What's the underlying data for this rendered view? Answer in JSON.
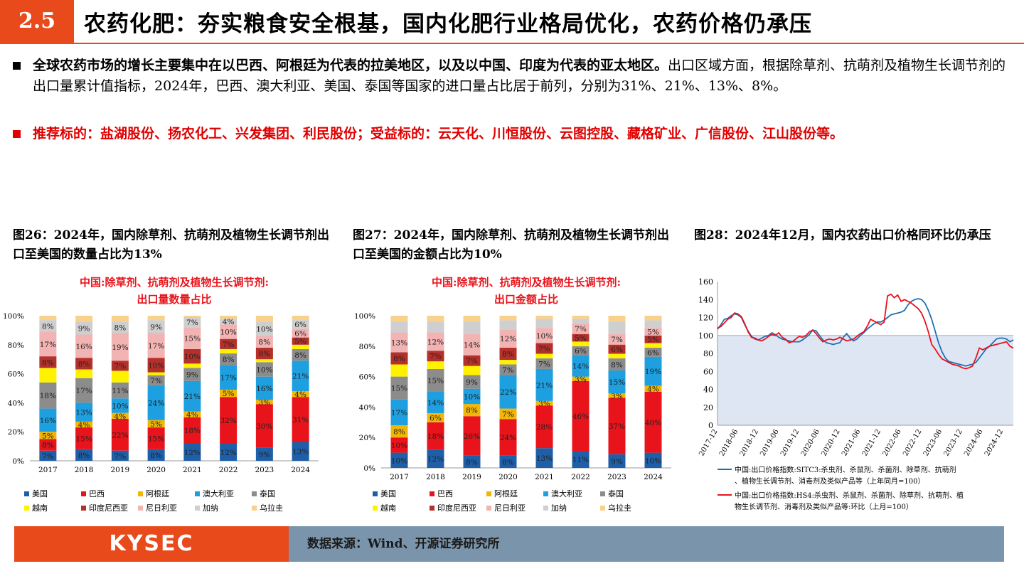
{
  "header": {
    "section_number": "2.5",
    "title": "农药化肥：夯实粮食安全根基，国内化肥行业格局优化，农药价格仍承压"
  },
  "bullets": [
    {
      "bold": "全球农药市场的增长主要集中在以巴西、阿根廷为代表的拉美地区，以及以中国、印度为代表的亚太地区。",
      "rest": "出口区域方面，根据除草剂、抗萌剂及植物生长调节剂的出口量累计值指标，2024年，巴西、澳大利亚、美国、泰国等国家的进口量占比居于前列，分别为31%、21%、13%、8%。"
    },
    {
      "text": "推荐标的：盐湖股份、扬农化工、兴发集团、利民股份；受益标的：云天化、川恒股份、云图控股、藏格矿业、广信股份、江山股份等。"
    }
  ],
  "figures": {
    "fig26_title": "图26：2024年，国内除草剂、抗萌剂及植物生长调节剂出口至美国的数量占比为13%",
    "fig27_title": "图27：2024年，国内除草剂、抗萌剂及植物生长调节剂出口至美国的金额占比为10%",
    "fig28_title": "图28：2024年12月，国内农药出口价格同环比仍承压"
  },
  "footer": {
    "logo": "KYSEC",
    "source": "数据来源：Wind、开源证券研究所"
  },
  "colors": {
    "accent": "#e84a1c",
    "footer_bar": "#7a95ab",
    "recommend_text": "#e00000"
  },
  "chart_data": [
    {
      "type": "bar",
      "stacked": true,
      "title": "中国:除草剂、抗萌剂及植物生长调节剂:出口量数量占比",
      "categories": [
        "2017",
        "2018",
        "2019",
        "2020",
        "2021",
        "2022",
        "2023",
        "2024"
      ],
      "y_ticks": [
        "0%",
        "20%",
        "40%",
        "60%",
        "80%",
        "100%"
      ],
      "ylim": [
        0,
        100
      ],
      "legend_position": "bottom",
      "series": [
        {
          "name": "美国",
          "color": "#1f5fa8",
          "values": [
            7,
            8,
            7,
            8,
            12,
            12,
            9,
            13
          ]
        },
        {
          "name": "巴西",
          "color": "#e8131b",
          "values": [
            8,
            15,
            22,
            15,
            18,
            32,
            30,
            31
          ]
        },
        {
          "name": "阿根廷",
          "color": "#f2b705",
          "values": [
            5,
            4,
            4,
            5,
            4,
            5,
            3,
            4
          ]
        },
        {
          "name": "澳大利亚",
          "color": "#1e9fe0",
          "values": [
            16,
            13,
            10,
            24,
            21,
            17,
            16,
            21
          ]
        },
        {
          "name": "泰国",
          "color": "#8c8c8c",
          "values": [
            18,
            17,
            11,
            7,
            9,
            8,
            10,
            8
          ]
        },
        {
          "name": "越南",
          "color": "#fff200",
          "values": [
            10,
            6,
            8,
            2,
            3,
            3,
            2,
            3
          ]
        },
        {
          "name": "印度尼西亚",
          "color": "#b5302a",
          "values": [
            8,
            8,
            7,
            10,
            10,
            7,
            8,
            5
          ]
        },
        {
          "name": "尼日利亚",
          "color": "#f2b3b3",
          "values": [
            17,
            16,
            19,
            17,
            15,
            10,
            8,
            6
          ]
        },
        {
          "name": "加纳",
          "color": "#cfcfcf",
          "values": [
            8,
            9,
            8,
            9,
            7,
            4,
            10,
            6
          ]
        },
        {
          "name": "乌拉圭",
          "color": "#f9d18b",
          "values": [
            3,
            4,
            4,
            3,
            1,
            2,
            4,
            3
          ]
        }
      ],
      "data_labels": [
        [
          "7%",
          "8%",
          "5%",
          "16%",
          "18%",
          "",
          "8%",
          "17%",
          "8%",
          ""
        ],
        [
          "8%",
          "15%",
          "4%",
          "13%",
          "17%",
          "",
          "8%",
          "16%",
          "9%",
          ""
        ],
        [
          "7%",
          "22%",
          "4%",
          "10%",
          "11%",
          "",
          "7%",
          "19%",
          "8%",
          ""
        ],
        [
          "8%",
          "15%",
          "5%",
          "24%",
          "7%",
          "",
          "10%",
          "17%",
          "9%",
          ""
        ],
        [
          "12%",
          "18%",
          "4%",
          "21%",
          "9%",
          "",
          "10%",
          "15%",
          "7%",
          ""
        ],
        [
          "12%",
          "32%",
          "5%",
          "17%",
          "8%",
          "",
          "7%",
          "10%",
          "4%",
          ""
        ],
        [
          "9%",
          "30%",
          "3%",
          "16%",
          "10%",
          "",
          "8%",
          "8%",
          "10%",
          ""
        ],
        [
          "13%",
          "31%",
          "4%",
          "21%",
          "8%",
          "",
          "5%",
          "6%",
          "6%",
          ""
        ]
      ]
    },
    {
      "type": "bar",
      "stacked": true,
      "title": "中国:除草剂、抗萌剂及植物生长调节剂:出口金额占比",
      "categories": [
        "2017",
        "2018",
        "2019",
        "2020",
        "2021",
        "2022",
        "2023",
        "2024"
      ],
      "y_ticks": [
        "0%",
        "20%",
        "40%",
        "60%",
        "80%",
        "100%"
      ],
      "ylim": [
        0,
        100
      ],
      "legend_position": "bottom",
      "series": [
        {
          "name": "美国",
          "color": "#1f5fa8",
          "values": [
            10,
            12,
            8,
            8,
            13,
            11,
            9,
            10
          ]
        },
        {
          "name": "巴西",
          "color": "#e8131b",
          "values": [
            10,
            18,
            26,
            24,
            28,
            46,
            37,
            40
          ]
        },
        {
          "name": "阿根廷",
          "color": "#f2b705",
          "values": [
            8,
            6,
            8,
            7,
            3,
            3,
            3,
            4
          ]
        },
        {
          "name": "澳大利亚",
          "color": "#1e9fe0",
          "values": [
            17,
            14,
            10,
            22,
            21,
            14,
            15,
            19
          ]
        },
        {
          "name": "泰国",
          "color": "#8c8c8c",
          "values": [
            15,
            15,
            9,
            7,
            7,
            6,
            8,
            6
          ]
        },
        {
          "name": "越南",
          "color": "#fff200",
          "values": [
            8,
            5,
            6,
            3,
            3,
            3,
            3,
            3
          ]
        },
        {
          "name": "印度尼西亚",
          "color": "#b5302a",
          "values": [
            8,
            7,
            7,
            8,
            7,
            5,
            6,
            5
          ]
        },
        {
          "name": "尼日利亚",
          "color": "#f2b3b3",
          "values": [
            13,
            12,
            14,
            12,
            10,
            7,
            7,
            5
          ]
        },
        {
          "name": "加纳",
          "color": "#cfcfcf",
          "values": [
            7,
            7,
            8,
            6,
            6,
            3,
            8,
            5
          ]
        },
        {
          "name": "乌拉圭",
          "color": "#f9d18b",
          "values": [
            4,
            4,
            4,
            3,
            2,
            2,
            4,
            3
          ]
        }
      ],
      "data_labels": [
        [
          "10%",
          "10%",
          "8%",
          "17%",
          "15%",
          "",
          "8%",
          "13%",
          "",
          ""
        ],
        [
          "12%",
          "18%",
          "6%",
          "14%",
          "15%",
          "",
          "7%",
          "12%",
          "",
          ""
        ],
        [
          "8%",
          "26%",
          "8%",
          "10%",
          "9%",
          "",
          "7%",
          "14%",
          "",
          ""
        ],
        [
          "8%",
          "24%",
          "7%",
          "22%",
          "7%",
          "",
          "8%",
          "12%",
          "",
          ""
        ],
        [
          "13%",
          "28%",
          "3%",
          "21%",
          "7%",
          "",
          "7%",
          "10%",
          "",
          ""
        ],
        [
          "11%",
          "46%",
          "3%",
          "14%",
          "6%",
          "",
          "5%",
          "7%",
          "",
          ""
        ],
        [
          "9%",
          "37%",
          "3%",
          "15%",
          "8%",
          "",
          "6%",
          "7%",
          "",
          ""
        ],
        [
          "10%",
          "40%",
          "4%",
          "19%",
          "6%",
          "",
          "5%",
          "5%",
          "",
          ""
        ]
      ]
    },
    {
      "type": "line",
      "x_ticks": [
        "2017-12",
        "2018-06",
        "2018-12",
        "2019-06",
        "2019-12",
        "2020-06",
        "2020-12",
        "2021-06",
        "2021-12",
        "2022-06",
        "2022-12",
        "2023-06",
        "2023-12",
        "2024-06",
        "2024-12"
      ],
      "x_tick_index": [
        0,
        6,
        12,
        18,
        24,
        30,
        36,
        42,
        48,
        54,
        60,
        66,
        72,
        78,
        84
      ],
      "y_ticks": [
        0,
        20,
        40,
        60,
        80,
        100,
        120,
        140,
        160
      ],
      "ylim": [
        0,
        160
      ],
      "reference_line": 100,
      "legend_position": "bottom",
      "series": [
        {
          "name": "中国:出口价格指数:SITC3:杀虫剂、杀鼠剂、杀菌剂、除草剂、抗萌剂、植物生长调节剂、消毒剂及类似产品等（上年同月=100）",
          "color": "#1f6fb5",
          "values": [
            107,
            112,
            118,
            119,
            122,
            124,
            123,
            120,
            112,
            105,
            99,
            96,
            95,
            97,
            99,
            100,
            103,
            101,
            98,
            96,
            95,
            94,
            93,
            93,
            93,
            95,
            98,
            101,
            106,
            105,
            100,
            95,
            92,
            91,
            90,
            91,
            92,
            98,
            102,
            97,
            94,
            96,
            100,
            103,
            107,
            110,
            113,
            115,
            115,
            117,
            120,
            123,
            124,
            125,
            126,
            128,
            134,
            138,
            140,
            141,
            140,
            136,
            128,
            118,
            105,
            92,
            82,
            75,
            71,
            70,
            69,
            68,
            67,
            66,
            67,
            68,
            70,
            75,
            80,
            85,
            88,
            92,
            96,
            97,
            97,
            96,
            93,
            95
          ]
        },
        {
          "name": "中国:出口价格指数:HS4:杀虫剂、杀鼠剂、杀菌剂、除草剂、抗萌剂、植物生长调节剂、消毒剂及类似产品等:环比（上月=100）",
          "color": "#e8131b",
          "values": [
            108,
            110,
            114,
            118,
            120,
            125,
            124,
            121,
            113,
            104,
            98,
            97,
            95,
            94,
            96,
            99,
            101,
            100,
            103,
            98,
            96,
            92,
            93,
            96,
            99,
            98,
            100,
            104,
            106,
            102,
            97,
            93,
            95,
            96,
            95,
            96,
            98,
            96,
            94,
            95,
            96,
            99,
            102,
            104,
            110,
            118,
            116,
            114,
            112,
            115,
            144,
            146,
            142,
            145,
            138,
            140,
            138,
            136,
            133,
            130,
            125,
            116,
            104,
            90,
            85,
            79,
            74,
            72,
            70,
            68,
            67,
            66,
            64,
            63,
            64,
            66,
            75,
            86,
            84,
            86,
            88,
            89,
            90,
            91,
            92,
            93,
            88,
            86
          ]
        }
      ]
    }
  ]
}
